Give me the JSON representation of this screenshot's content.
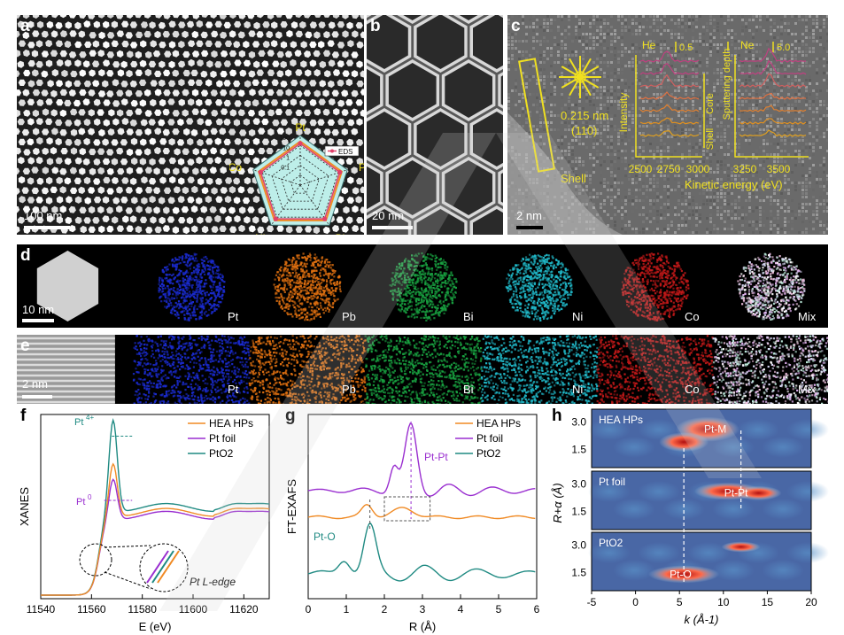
{
  "panels": {
    "a": {
      "label": "a",
      "scale": "100 nm",
      "radar": {
        "legend": "EDS",
        "vertices": [
          "Pt",
          "Pb",
          "Bi",
          "Ni",
          "Co"
        ],
        "ticks": [
          "100",
          "10",
          "1",
          "0.1"
        ]
      }
    },
    "b": {
      "label": "b",
      "scale": "20 nm"
    },
    "c": {
      "label": "c",
      "scale": "2 nm",
      "d_spacing": "0.215 nm",
      "plane": "(110)",
      "shell": "Shell",
      "he": "He",
      "he_scale": "0.5",
      "ne": "Ne",
      "ne_scale": "5.0",
      "ylabel": "Intensity",
      "core": "Core",
      "shell_side": "Shell",
      "sputter": "Sputtering depth",
      "xticks_he": [
        "2500",
        "2750",
        "3000"
      ],
      "xticks_ne": [
        "3250",
        "3500"
      ],
      "xlabel": "Kinetic energy (eV)"
    },
    "d": {
      "label": "d",
      "scale": "10 nm",
      "elements": [
        "Pt",
        "Pb",
        "Bi",
        "Ni",
        "Co",
        "Mix"
      ]
    },
    "e": {
      "label": "e",
      "scale": "2 nm",
      "elements": [
        "Pt",
        "Pb",
        "Bi",
        "Ni",
        "Co",
        "Mix"
      ]
    }
  },
  "chart_data": [
    {
      "panel": "f",
      "type": "line",
      "xlabel": "E (eV)",
      "ylabel": "XANES",
      "xlim": [
        11540,
        11630
      ],
      "xticks": [
        "11540",
        "11560",
        "11580",
        "11600",
        "11620"
      ],
      "series": [
        {
          "name": "HEA HPs",
          "color": "#f08a24"
        },
        {
          "name": "Pt foil",
          "color": "#9a2fd0"
        },
        {
          "name": "PtO2",
          "color": "#1f8a82"
        }
      ],
      "annotations": {
        "pt4": "Pt",
        "pt4_sup": "4+",
        "pt0": "Pt",
        "pt0_sup": "0",
        "edge": "Pt L-edge"
      }
    },
    {
      "panel": "g",
      "type": "line",
      "xlabel": "R (Å)",
      "ylabel": "FT-EXAFS",
      "xlim": [
        0,
        6
      ],
      "xticks": [
        "0",
        "1",
        "2",
        "3",
        "4",
        "5",
        "6"
      ],
      "series": [
        {
          "name": "HEA HPs",
          "color": "#f08a24"
        },
        {
          "name": "Pt foil",
          "color": "#9a2fd0"
        },
        {
          "name": "PtO2",
          "color": "#1f8a82"
        }
      ],
      "annotations": {
        "ptpt": "Pt-Pt",
        "pto": "Pt-O"
      }
    },
    {
      "panel": "h",
      "type": "heatmap",
      "xlabel": "k (Å-1)",
      "ylabel": "R+α (Å)",
      "xlim": [
        -5,
        20
      ],
      "xticks": [
        "-5",
        "0",
        "5",
        "10",
        "15",
        "20"
      ],
      "yticks": [
        "3.0",
        "1.5"
      ],
      "rows": [
        {
          "name": "HEA HPs",
          "peak": "Pt-M"
        },
        {
          "name": "Pt foil",
          "peak": "Pt-Pt"
        },
        {
          "name": "PtO2",
          "peak": "Pt-O"
        }
      ]
    }
  ],
  "colors": {
    "accent": "#f0e020",
    "pt": "#1a2bd0",
    "pb": "#e07010",
    "bi": "#18a040",
    "ni": "#20b8c8",
    "co": "#c01818"
  }
}
